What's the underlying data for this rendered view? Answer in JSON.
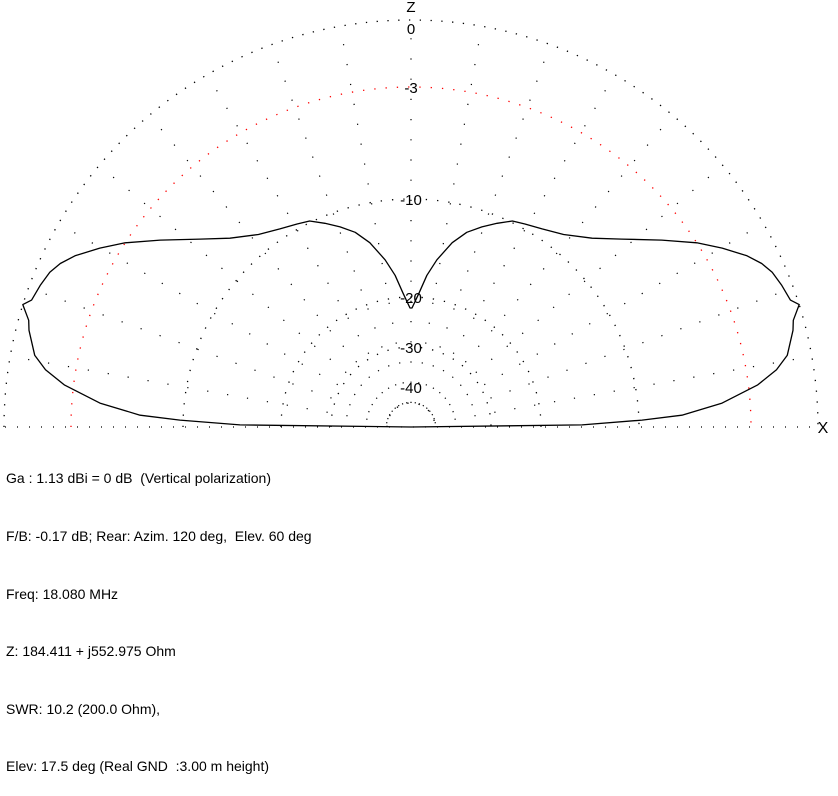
{
  "chart_data": {
    "type": "polar-elevation",
    "axis_labels": {
      "vertical": "Z",
      "horizontal": "X"
    },
    "radial_scale": "dB, log-compressed",
    "ring_labels": [
      "0",
      "-3",
      "-10",
      "-20",
      "-30",
      "-40"
    ],
    "ring_values_db": [
      0,
      -3,
      -10,
      -20,
      -30,
      -40
    ],
    "highlight_ring_db": -3,
    "spoke_step_deg": 10,
    "grid": true,
    "symmetric_about_zenith": true,
    "pattern_elev_deg_vs_db": [
      [
        0.7,
        -15.8
      ],
      [
        1.7,
        -9.8
      ],
      [
        2.5,
        -7.3
      ],
      [
        4.4,
        -4.75
      ],
      [
        6.9,
        -2.6
      ],
      [
        8.9,
        -1.66
      ],
      [
        10.8,
        -1.07
      ],
      [
        14.2,
        -0.58
      ],
      [
        15.6,
        -0.45
      ],
      [
        17.5,
        0
      ],
      [
        18.5,
        -0.31
      ],
      [
        20.9,
        -0.45
      ],
      [
        23.2,
        -0.63
      ],
      [
        25.0,
        -0.9
      ],
      [
        27.0,
        -1.34
      ],
      [
        29.9,
        -2.15
      ],
      [
        32.8,
        -3.0
      ],
      [
        36.7,
        -4.7
      ],
      [
        41.7,
        -6.6
      ],
      [
        46.2,
        -7.9
      ],
      [
        51.6,
        -8.9
      ],
      [
        56.5,
        -9.4
      ],
      [
        60.7,
        -9.7
      ],
      [
        63.8,
        -9.9
      ],
      [
        67.1,
        -10.7
      ],
      [
        70.5,
        -11.6
      ],
      [
        74.0,
        -12.6
      ],
      [
        77.4,
        -14.0
      ],
      [
        81.2,
        -16.0
      ],
      [
        84.0,
        -17.7
      ],
      [
        86.6,
        -19.6
      ],
      [
        89.5,
        -22.2
      ],
      [
        90,
        -22.2
      ]
    ],
    "colors": {
      "trace": "#000000",
      "grid": "#000000",
      "highlight_ring": "#ff0000"
    }
  },
  "info": {
    "lines": [
      "Ga : 1.13 dBi = 0 dB  (Vertical polarization)",
      "F/B: -0.17 dB; Rear: Azim. 120 deg,  Elev. 60 deg",
      "Freq: 18.080 MHz",
      "Z: 184.411 + j552.975 Ohm",
      "SWR: 10.2 (200.0 Ohm),",
      "Elev: 17.5 deg (Real GND  :3.00 m height)"
    ]
  }
}
